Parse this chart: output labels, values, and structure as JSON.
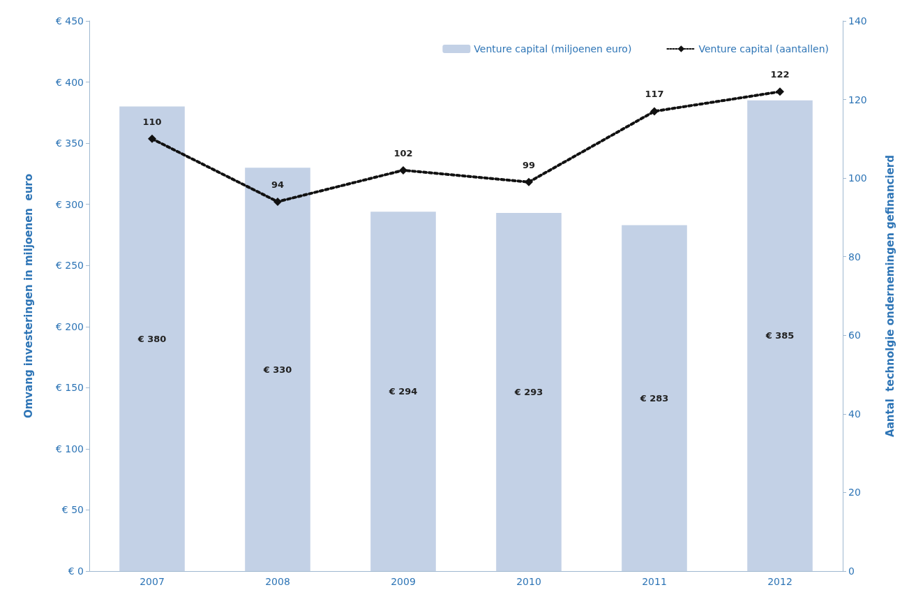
{
  "chart_data": {
    "type": "bar",
    "categories": [
      "2007",
      "2008",
      "2009",
      "2010",
      "2011",
      "2012"
    ],
    "ylabel": "Omvang investeringen in miljoenen  euro",
    "y2label": "Aantal  technolgie ondernemingen gefinancierd",
    "ylim": [
      0,
      450
    ],
    "yticks": [
      {
        "value": 0,
        "label": "€ 0"
      },
      {
        "value": 50,
        "label": "€ 50"
      },
      {
        "value": 100,
        "label": "€ 100"
      },
      {
        "value": 150,
        "label": "€ 150"
      },
      {
        "value": 200,
        "label": "€ 200"
      },
      {
        "value": 250,
        "label": "€ 250"
      },
      {
        "value": 300,
        "label": "€ 300"
      },
      {
        "value": 350,
        "label": "€ 350"
      },
      {
        "value": 400,
        "label": "€ 400"
      },
      {
        "value": 450,
        "label": "€ 450"
      }
    ],
    "y2lim": [
      0,
      140
    ],
    "y2ticks": [
      0,
      20,
      40,
      60,
      80,
      100,
      120,
      140
    ],
    "series": [
      {
        "name": "Venture capital (miljoenen euro)",
        "color": "#c3d1e6",
        "values": [
          380,
          330,
          294,
          293,
          283,
          385
        ],
        "value_labels": [
          "€ 380",
          "€ 330",
          "€ 294",
          "€ 293",
          "€ 283",
          "€ 385"
        ]
      },
      {
        "name": "Venture capital (aantallen)",
        "type": "line",
        "axis": "y2",
        "color": "#111111",
        "values": [
          110,
          94,
          102,
          99,
          117,
          122
        ],
        "value_labels": [
          "110",
          "94",
          "102",
          "99",
          "117",
          "122"
        ],
        "marker": "diamond",
        "line_style": "dotted"
      }
    ],
    "grid": false,
    "legend": "top right"
  }
}
